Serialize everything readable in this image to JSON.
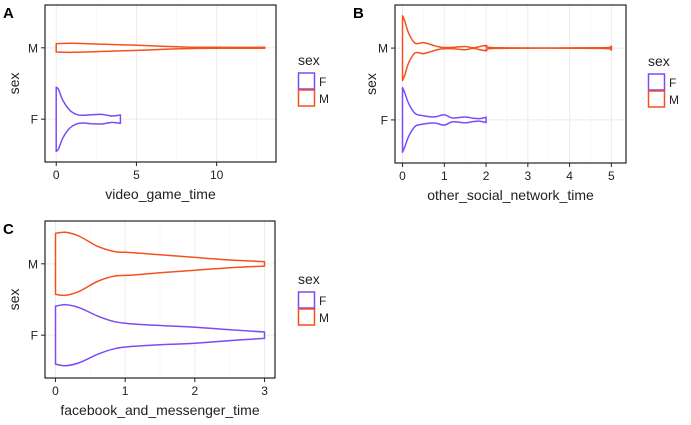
{
  "chart_data": [
    {
      "type": "violin",
      "panel_tag": "A",
      "xlabel": "video_game_time",
      "ylabel": "sex",
      "xlim": [
        -0.7,
        13.7
      ],
      "xticks": [
        0,
        5,
        10
      ],
      "xtick_labels": [
        "0",
        "5",
        "10"
      ],
      "minor_xticks": [
        2.5,
        7.5,
        12.5
      ],
      "categories": [
        "F",
        "M"
      ],
      "legend": {
        "title": "sex",
        "entries": [
          "F",
          "M"
        ],
        "position": "right"
      },
      "grid": true,
      "series": [
        {
          "name": "F",
          "color": "#7B4BF5",
          "range": [
            0,
            4
          ],
          "profile": [
            [
              0,
              1.0
            ],
            [
              0.15,
              0.92
            ],
            [
              0.4,
              0.6
            ],
            [
              0.8,
              0.3
            ],
            [
              1.2,
              0.16
            ],
            [
              1.6,
              0.12
            ],
            [
              2.2,
              0.14
            ],
            [
              2.8,
              0.15
            ],
            [
              3.2,
              0.12
            ],
            [
              3.5,
              0.1
            ],
            [
              4,
              0.13
            ]
          ]
        },
        {
          "name": "M",
          "color": "#F4511E",
          "range": [
            0,
            13
          ],
          "profile": [
            [
              0,
              0.13
            ],
            [
              1,
              0.14
            ],
            [
              3,
              0.11
            ],
            [
              5,
              0.08
            ],
            [
              7,
              0.04
            ],
            [
              8.5,
              0.02
            ],
            [
              10,
              0.015
            ],
            [
              13,
              0.015
            ]
          ]
        }
      ]
    },
    {
      "type": "violin",
      "panel_tag": "B",
      "xlabel": "other_social_network_time",
      "ylabel": "sex",
      "xlim": [
        -0.18,
        5.35
      ],
      "xticks": [
        0,
        1,
        2,
        3,
        4,
        5
      ],
      "xtick_labels": [
        "0",
        "1",
        "2",
        "3",
        "4",
        "5"
      ],
      "minor_xticks": [
        0.5,
        1.5,
        2.5,
        3.5,
        4.5
      ],
      "categories": [
        "F",
        "M"
      ],
      "legend": {
        "title": "sex",
        "entries": [
          "F",
          "M"
        ],
        "position": "right"
      },
      "grid": true,
      "series": [
        {
          "name": "F",
          "color": "#7B4BF5",
          "range": [
            0,
            2
          ],
          "profile": [
            [
              0,
              1.0
            ],
            [
              0.05,
              0.85
            ],
            [
              0.15,
              0.5
            ],
            [
              0.3,
              0.2
            ],
            [
              0.45,
              0.14
            ],
            [
              0.65,
              0.1
            ],
            [
              0.8,
              0.1
            ],
            [
              1.0,
              0.16
            ],
            [
              1.2,
              0.06
            ],
            [
              1.5,
              0.09
            ],
            [
              1.7,
              0.05
            ],
            [
              1.85,
              0.04
            ],
            [
              2,
              0.08
            ]
          ]
        },
        {
          "name": "M",
          "color": "#F4511E",
          "range": [
            0,
            5
          ],
          "profile": [
            [
              0,
              1.0
            ],
            [
              0.05,
              0.85
            ],
            [
              0.15,
              0.45
            ],
            [
              0.3,
              0.15
            ],
            [
              0.5,
              0.17
            ],
            [
              0.7,
              0.1
            ],
            [
              0.9,
              0.03
            ],
            [
              1.2,
              0.02
            ],
            [
              1.5,
              0.05
            ],
            [
              1.7,
              0.01
            ],
            [
              2.0,
              0.08
            ],
            [
              2.25,
              0.01
            ],
            [
              4.7,
              0.01
            ],
            [
              5.0,
              0.06
            ]
          ]
        }
      ]
    },
    {
      "type": "violin",
      "panel_tag": "C",
      "xlabel": "facebook_and_messenger_time",
      "ylabel": "sex",
      "xlim": [
        -0.15,
        3.15
      ],
      "xticks": [
        0,
        1,
        2,
        3
      ],
      "xtick_labels": [
        "0",
        "1",
        "2",
        "3"
      ],
      "minor_xticks": [
        0.5,
        1.5,
        2.5
      ],
      "categories": [
        "F",
        "M"
      ],
      "legend": {
        "title": "sex",
        "entries": [
          "F",
          "M"
        ],
        "position": "right"
      },
      "grid": true,
      "series": [
        {
          "name": "F",
          "color": "#7B4BF5",
          "range": [
            0,
            3
          ],
          "profile": [
            [
              0,
              0.9
            ],
            [
              0.15,
              0.95
            ],
            [
              0.35,
              0.85
            ],
            [
              0.6,
              0.6
            ],
            [
              0.85,
              0.42
            ],
            [
              1.1,
              0.35
            ],
            [
              1.5,
              0.3
            ],
            [
              2.0,
              0.25
            ],
            [
              2.5,
              0.17
            ],
            [
              3,
              0.1
            ]
          ]
        },
        {
          "name": "M",
          "color": "#F4511E",
          "range": [
            0,
            3
          ],
          "profile": [
            [
              0,
              0.95
            ],
            [
              0.15,
              0.98
            ],
            [
              0.35,
              0.85
            ],
            [
              0.6,
              0.55
            ],
            [
              0.85,
              0.38
            ],
            [
              1.1,
              0.35
            ],
            [
              1.5,
              0.28
            ],
            [
              2.0,
              0.2
            ],
            [
              2.5,
              0.12
            ],
            [
              3,
              0.07
            ]
          ]
        }
      ]
    }
  ]
}
